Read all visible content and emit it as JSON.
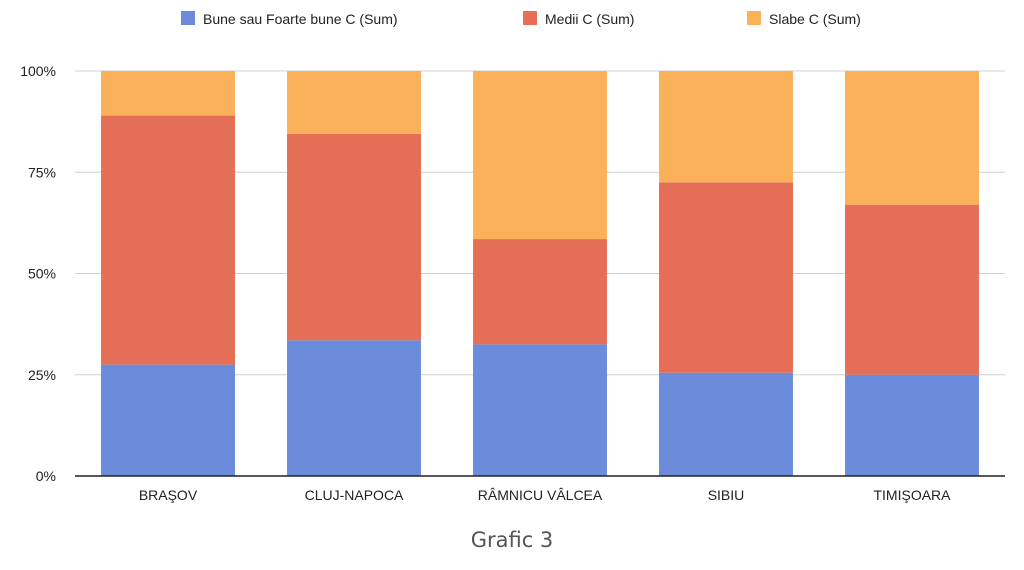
{
  "caption": "Grafic 3",
  "colors": {
    "good": "#6a8cdb",
    "medium": "#e46f56",
    "weak": "#fbb15a",
    "grid": "#d0d0d0",
    "axis": "#222222"
  },
  "chart_data": {
    "type": "bar",
    "stacked": "percent",
    "categories": [
      "BRAŞOV",
      "CLUJ-NAPOCA",
      "RÂMNICU VÂLCEA",
      "SIBIU",
      "TIMIŞOARA"
    ],
    "series": [
      {
        "name": "Bune sau Foarte bune C (Sum)",
        "color": "#6a8cdb",
        "values": [
          27.5,
          33.5,
          32.5,
          25.5,
          25
        ]
      },
      {
        "name": "Medii C (Sum)",
        "color": "#e46f56",
        "values": [
          61.5,
          51,
          26,
          47,
          42
        ]
      },
      {
        "name": "Slabe C (Sum)",
        "color": "#fbb15a",
        "values": [
          11,
          15.5,
          41.5,
          27.5,
          33
        ]
      }
    ],
    "y_ticks": [
      "0%",
      "25%",
      "50%",
      "75%",
      "100%"
    ],
    "ylim": [
      0,
      100
    ],
    "grid": true,
    "legend_position": "top"
  }
}
